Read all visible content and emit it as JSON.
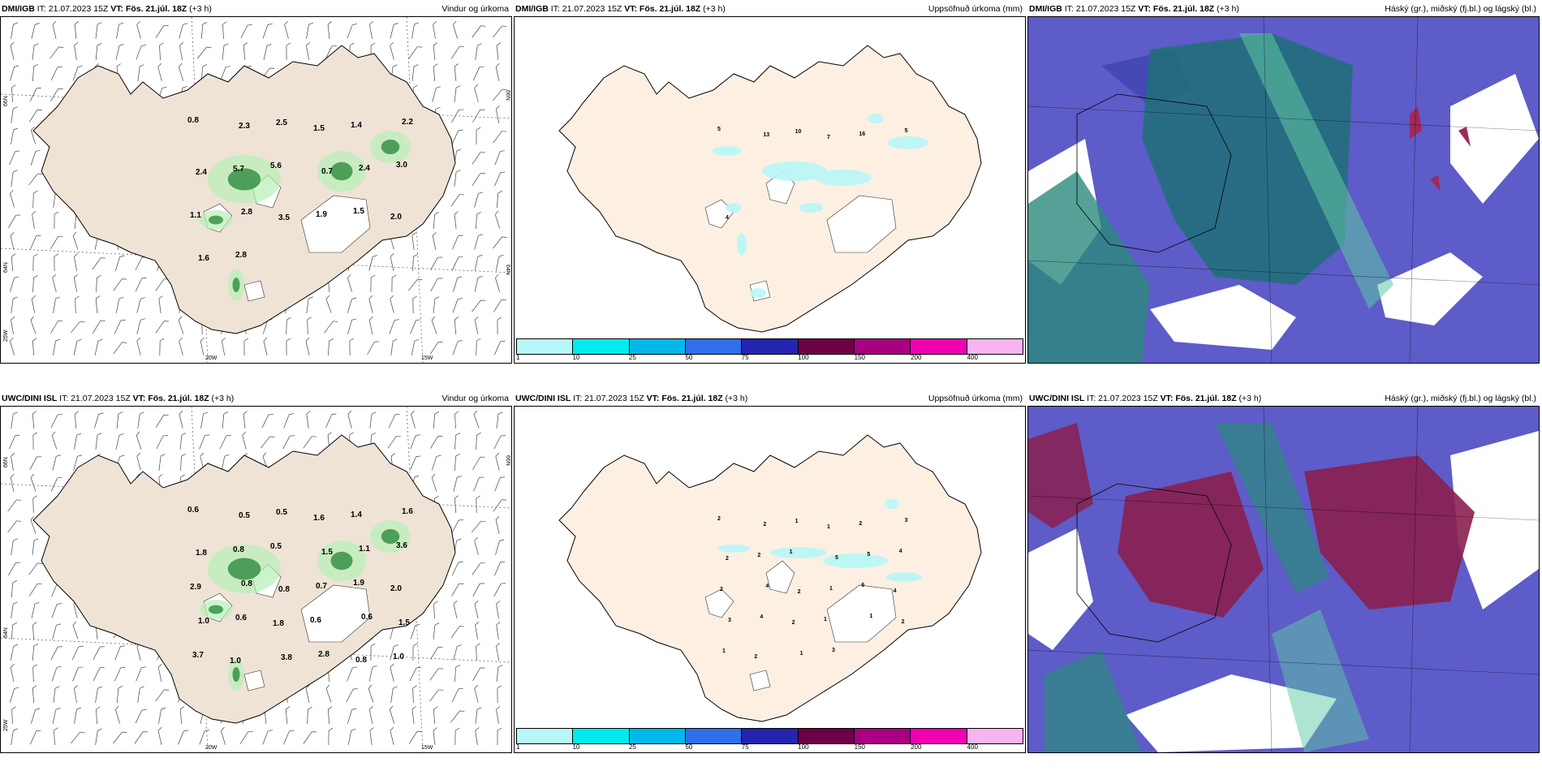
{
  "panels": [
    {
      "model": "DMI/IGB",
      "it": "IT: 21.07.2023 15Z",
      "vt_label": "VT: Fös. 21.júl. 18Z",
      "lead": "(+3 h)",
      "title": "Vindur og úrkoma"
    },
    {
      "model": "DMI/IGB",
      "it": "IT: 21.07.2023 15Z",
      "vt_label": "VT: Fös. 21.júl. 18Z",
      "lead": "(+3 h)",
      "title": "Uppsöfnuð úrkoma (mm)"
    },
    {
      "model": "DMI/IGB",
      "it": "IT: 21.07.2023 15Z",
      "vt_label": "VT: Fös. 21.júl. 18Z",
      "lead": "(+3 h)",
      "title": "Háský (gr.), miðský (fj.bl.) og lágský (bl.)"
    },
    {
      "model": "UWC/DINI ISL",
      "it": "IT: 21.07.2023 15Z",
      "vt_label": "VT: Fös. 21.júl. 18Z",
      "lead": "(+3 h)",
      "title": "Vindur og úrkoma"
    },
    {
      "model": "UWC/DINI ISL",
      "it": "IT: 21.07.2023 15Z",
      "vt_label": "VT: Fös. 21.júl. 18Z",
      "lead": "(+3 h)",
      "title": "Uppsöfnuð úrkoma (mm)"
    },
    {
      "model": "UWC/DINI ISL",
      "it": "IT: 21.07.2023 15Z",
      "vt_label": "VT: Fös. 21.júl. 18Z",
      "lead": "(+3 h)",
      "title": "Háský (gr.), miðský (fj.bl.) og lágský (bl.)"
    }
  ],
  "axes": {
    "lat_66": "66N",
    "lat_64": "64N",
    "lon_20": "20W",
    "lon_15": "15W",
    "lon_25": "25W"
  },
  "colorbar": {
    "ticks": [
      "1",
      "10",
      "25",
      "50",
      "75",
      "100",
      "150",
      "200",
      "400"
    ],
    "colors": [
      "#b8f7f7",
      "#00ecec",
      "#00b8ea",
      "#2f6fec",
      "#2424b0",
      "#6e0046",
      "#a80080",
      "#f000b0",
      "#f8b4f0"
    ]
  },
  "wind_precip": {
    "top": [
      "0.8",
      "2.3",
      "2.5",
      "1.5",
      "1.4",
      "2.2",
      "2.4",
      "5.7",
      "5.6",
      "0.7",
      "2.4",
      "3.0",
      "1.1",
      "2.8",
      "3.5",
      "1.9",
      "1.5",
      "2.0",
      "1.6",
      "2.8"
    ],
    "bottom": [
      "0.6",
      "0.5",
      "0.5",
      "1.6",
      "1.4",
      "1.6",
      "1.8",
      "0.8",
      "0.5",
      "1.5",
      "1.1",
      "3.6",
      "2.9",
      "0.8",
      "0.8",
      "0.7",
      "1.9",
      "2.0",
      "1.0",
      "0.6",
      "1.8",
      "0.6",
      "0.6",
      "1.5",
      "3.7",
      "1.0",
      "3.8",
      "2.8",
      "0.8",
      "1.0"
    ]
  },
  "accum": {
    "top": [
      "5",
      "13",
      "10",
      "7",
      "16",
      "5",
      "4"
    ],
    "bottom": [
      "2",
      "2",
      "1",
      "1",
      "2",
      "3",
      "2",
      "2",
      "1",
      "5",
      "5",
      "4",
      "2",
      "4",
      "2",
      "1",
      "6",
      "4",
      "3",
      "4",
      "2",
      "1",
      "1",
      "2",
      "1",
      "2",
      "1",
      "3"
    ]
  }
}
